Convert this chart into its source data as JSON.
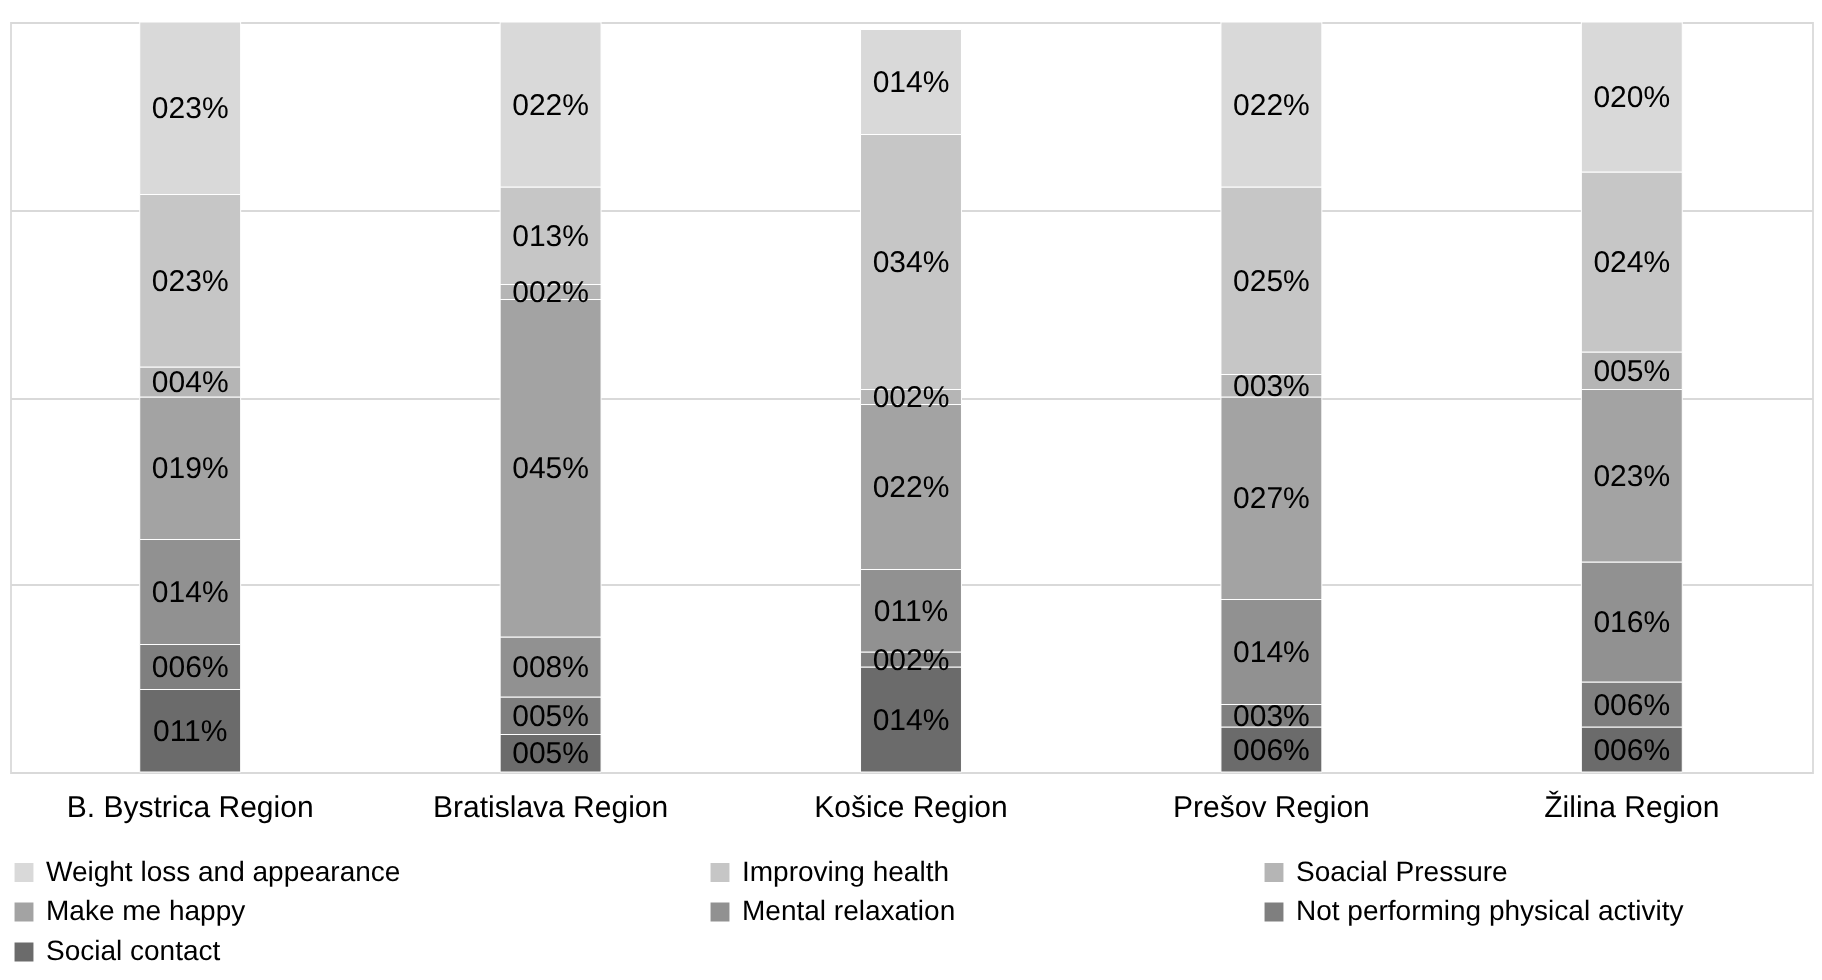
{
  "chart_data": {
    "type": "bar",
    "stacked": true,
    "categories": [
      "B. Bystrica Region",
      "Bratislava Region",
      "Košice Region",
      "Prešov Region",
      "Žilina Region"
    ],
    "series": [
      {
        "name": "Social contact",
        "color": "#6b6b6b",
        "values": [
          11,
          5,
          14,
          6,
          6
        ],
        "value_labels": [
          "011%",
          "005%",
          "014%",
          "006%",
          "006%"
        ]
      },
      {
        "name": "Not performing physical activity",
        "color": "#7f7f7f",
        "values": [
          6,
          5,
          2,
          3,
          6
        ],
        "value_labels": [
          "006%",
          "005%",
          "002%",
          "003%",
          "006%"
        ]
      },
      {
        "name": "Mental relaxation",
        "color": "#919191",
        "values": [
          14,
          8,
          11,
          14,
          16
        ],
        "value_labels": [
          "014%",
          "008%",
          "011%",
          "014%",
          "016%"
        ]
      },
      {
        "name": "Make me happy",
        "color": "#a3a3a3",
        "values": [
          19,
          45,
          22,
          27,
          23
        ],
        "value_labels": [
          "019%",
          "045%",
          "022%",
          "027%",
          "023%"
        ]
      },
      {
        "name": "Soacial Pressure",
        "color": "#b5b5b5",
        "values": [
          4,
          2,
          2,
          3,
          5
        ],
        "value_labels": [
          "004%",
          "002%",
          "002%",
          "003%",
          "005%"
        ]
      },
      {
        "name": "Improving health",
        "color": "#c6c6c6",
        "values": [
          23,
          13,
          34,
          25,
          24
        ],
        "value_labels": [
          "023%",
          "013%",
          "034%",
          "025%",
          "024%"
        ]
      },
      {
        "name": "Weight loss and appearance",
        "color": "#d9d9d9",
        "values": [
          23,
          22,
          14,
          22,
          20
        ],
        "value_labels": [
          "023%",
          "022%",
          "014%",
          "022%",
          "020%"
        ]
      }
    ],
    "ylim": [
      0,
      100
    ],
    "yticks": [
      {
        "value": 0,
        "label": null
      },
      {
        "value": 25,
        "label": null
      },
      {
        "value": 50,
        "label": null
      },
      {
        "value": 75,
        "label": null
      },
      {
        "value": 100,
        "label": null
      }
    ],
    "tick_labels": "x",
    "grid": "y",
    "legend": "bottom"
  }
}
